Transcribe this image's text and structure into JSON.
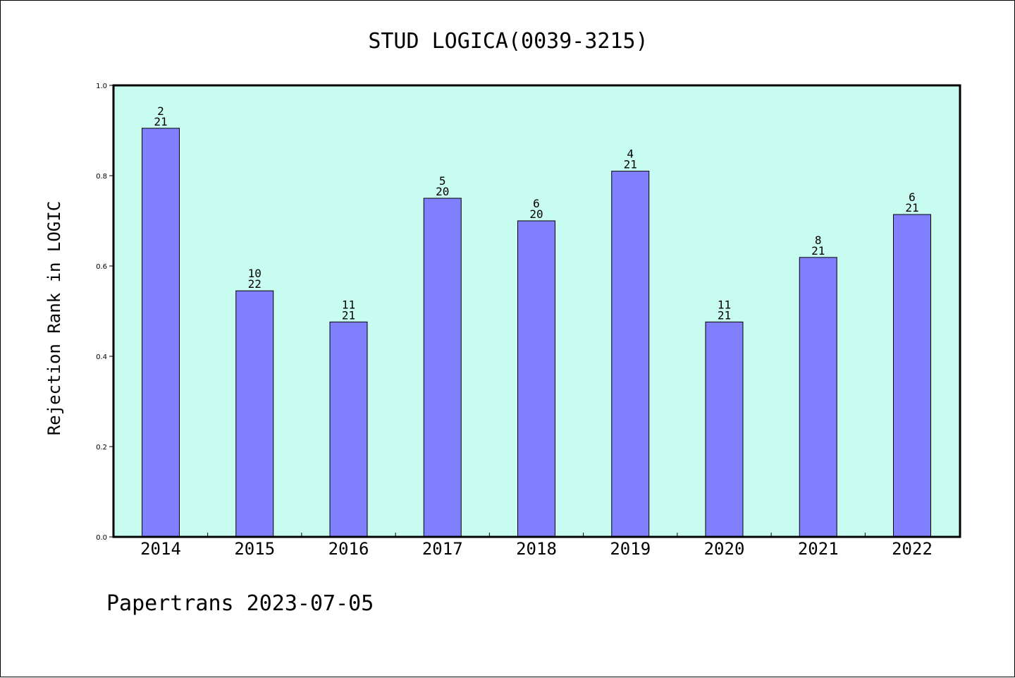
{
  "chart_data": {
    "type": "bar",
    "title": "STUD LOGICA(0039-3215)",
    "xlabel": "",
    "ylabel": "Rejection Rank in LOGIC",
    "ylim": [
      0,
      1.0
    ],
    "yticks": [
      "0.0",
      "0.2",
      "0.4",
      "0.6",
      "0.8",
      "1.0"
    ],
    "categories": [
      "2014",
      "2015",
      "2016",
      "2017",
      "2018",
      "2019",
      "2020",
      "2021",
      "2022"
    ],
    "values": [
      0.905,
      0.545,
      0.476,
      0.75,
      0.7,
      0.81,
      0.476,
      0.619,
      0.714
    ],
    "rank": [
      "2",
      "10",
      "11",
      "5",
      "6",
      "4",
      "11",
      "8",
      "6"
    ],
    "total": [
      "21",
      "22",
      "21",
      "20",
      "20",
      "21",
      "21",
      "21",
      "21"
    ],
    "grid": false,
    "legend": "none",
    "colors": {
      "plot_bg": "#c8fcf0",
      "bar": "#8080ff",
      "bar_edge": "#000000"
    }
  },
  "footer": {
    "text": "Papertrans 2023-07-05"
  }
}
